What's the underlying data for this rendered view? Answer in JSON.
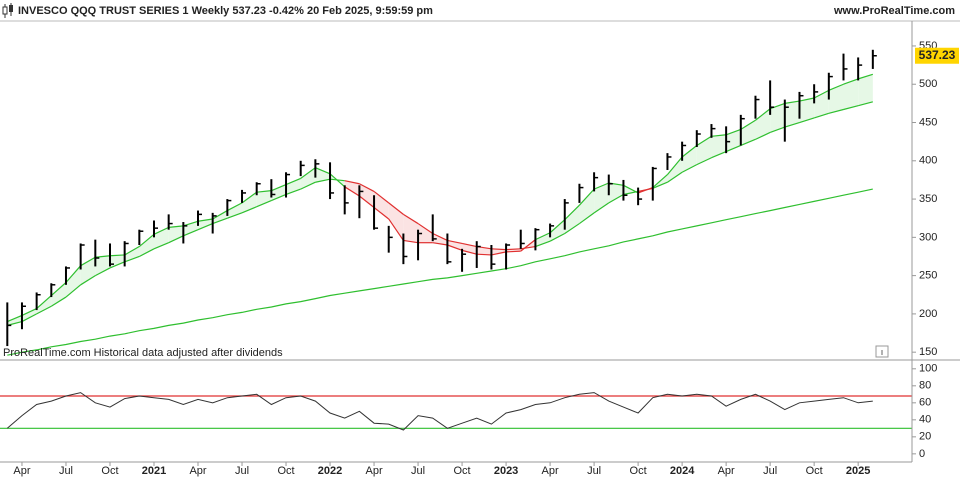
{
  "chart_data": [
    {
      "type": "ohlc",
      "title": "INVESCO QQQ TRUST SERIES 1 Weekly 537.23 -0.42% 20 Feb 2025, 9:59:59 pm",
      "source": "www.ProRealTime.com",
      "note": "ProRealTime.com Historical data adjusted after dividends",
      "last_label": "537.23",
      "categories": [
        null,
        "Apr",
        null,
        null,
        "Jul",
        null,
        null,
        "Oct",
        null,
        null,
        "2021",
        null,
        null,
        "Apr",
        null,
        null,
        "Jul",
        null,
        null,
        "Oct",
        null,
        null,
        "2022",
        null,
        null,
        "Apr",
        null,
        null,
        "Jul",
        null,
        null,
        "Oct",
        null,
        null,
        "2023",
        null,
        null,
        "Apr",
        null,
        null,
        "Jul",
        null,
        null,
        "Oct",
        null,
        null,
        "2024",
        null,
        null,
        "Apr",
        null,
        null,
        "Jul",
        null,
        null,
        "Oct",
        null,
        null,
        "2025",
        null
      ],
      "high": [
        215,
        215,
        228,
        240,
        262,
        292,
        297,
        292,
        295,
        310,
        322,
        330,
        320,
        335,
        332,
        350,
        362,
        372,
        376,
        385,
        400,
        402,
        398,
        368,
        368,
        355,
        315,
        305,
        310,
        330,
        305,
        285,
        295,
        290,
        292,
        310,
        312,
        318,
        350,
        370,
        385,
        382,
        375,
        365,
        392,
        410,
        425,
        440,
        448,
        445,
        460,
        485,
        505,
        480,
        490,
        500,
        515,
        540,
        535,
        545
      ],
      "low": [
        158,
        180,
        205,
        222,
        238,
        258,
        262,
        262,
        262,
        290,
        300,
        310,
        292,
        315,
        305,
        328,
        345,
        355,
        352,
        352,
        380,
        378,
        350,
        330,
        325,
        310,
        280,
        265,
        270,
        295,
        265,
        255,
        260,
        258,
        258,
        285,
        283,
        300,
        310,
        345,
        360,
        355,
        348,
        342,
        348,
        388,
        400,
        418,
        430,
        410,
        420,
        455,
        460,
        425,
        455,
        475,
        480,
        505,
        505,
        520
      ],
      "close": [
        185,
        210,
        225,
        238,
        260,
        290,
        273,
        265,
        292,
        308,
        312,
        318,
        315,
        330,
        328,
        348,
        358,
        370,
        356,
        382,
        394,
        396,
        358,
        345,
        360,
        312,
        300,
        275,
        305,
        298,
        268,
        278,
        288,
        265,
        290,
        292,
        310,
        315,
        345,
        365,
        378,
        370,
        355,
        350,
        390,
        405,
        420,
        435,
        442,
        425,
        455,
        480,
        470,
        470,
        485,
        490,
        510,
        520,
        525,
        537.23
      ],
      "lines": [
        {
          "color": "#2fbf2f",
          "values": [
            190,
            198,
            207,
            224,
            241,
            263,
            274,
            276,
            277,
            288,
            304,
            313,
            315,
            321,
            324,
            335,
            345,
            359,
            361,
            369,
            377,
            391,
            383,
            366,
            354,
            339,
            324,
            296,
            293,
            293,
            290,
            283,
            278,
            277,
            281,
            282,
            297,
            306,
            323,
            342,
            363,
            371,
            368,
            358,
            365,
            382,
            405,
            420,
            432,
            434,
            441,
            453,
            468,
            475,
            478,
            482,
            492,
            500,
            507,
            513
          ]
        },
        {
          "color": "#2fbf2f",
          "values": [
            185,
            190,
            200,
            210,
            222,
            238,
            250,
            260,
            268,
            275,
            285,
            293,
            302,
            310,
            318,
            325,
            332,
            340,
            348,
            356,
            363,
            372,
            376,
            374,
            370,
            360,
            345,
            330,
            318,
            305,
            296,
            292,
            288,
            285,
            284,
            285,
            288,
            295,
            305,
            318,
            332,
            345,
            356,
            360,
            364,
            372,
            385,
            395,
            404,
            412,
            420,
            428,
            437,
            444,
            450,
            456,
            462,
            467,
            472,
            477
          ]
        },
        {
          "color": "#2fbf2f",
          "values": [
            146,
            150,
            153,
            157,
            160,
            164,
            167,
            171,
            174,
            178,
            181,
            185,
            188,
            192,
            195,
            199,
            202,
            206,
            209,
            213,
            216,
            220,
            224,
            227,
            230,
            233,
            236,
            239,
            242,
            245,
            247,
            250,
            253,
            256,
            259,
            263,
            268,
            272,
            276,
            281,
            285,
            289,
            294,
            298,
            302,
            307,
            311,
            315,
            319,
            323,
            327,
            331,
            335,
            339,
            343,
            347,
            351,
            355,
            359,
            363
          ]
        }
      ],
      "up_color": "#2fbf2f",
      "down_color": "#e03030",
      "up_fill": "#e6f8e6",
      "down_fill": "#fbe3e3",
      "bar_color": "#000000",
      "label_color": "#ffd500",
      "ylim": [
        145,
        580
      ],
      "yticks": [
        150,
        200,
        250,
        300,
        350,
        400,
        450,
        500,
        550
      ],
      "grid": false
    },
    {
      "type": "line",
      "values": [
        30,
        45,
        58,
        62,
        68,
        72,
        60,
        55,
        65,
        68,
        66,
        64,
        58,
        64,
        60,
        66,
        68,
        70,
        58,
        66,
        68,
        62,
        48,
        42,
        50,
        36,
        35,
        28,
        45,
        42,
        30,
        36,
        42,
        35,
        48,
        52,
        58,
        60,
        66,
        70,
        72,
        62,
        55,
        48,
        66,
        70,
        68,
        70,
        68,
        56,
        64,
        70,
        62,
        52,
        60,
        62,
        64,
        66,
        60,
        62
      ],
      "color": "#333333",
      "levels": [
        {
          "value": 68,
          "color": "#e03030"
        },
        {
          "value": 30,
          "color": "#2fbf2f"
        }
      ],
      "ylim": [
        -9,
        108
      ],
      "yticks": [
        0,
        20,
        40,
        60,
        80,
        100
      ],
      "grid": false
    }
  ]
}
